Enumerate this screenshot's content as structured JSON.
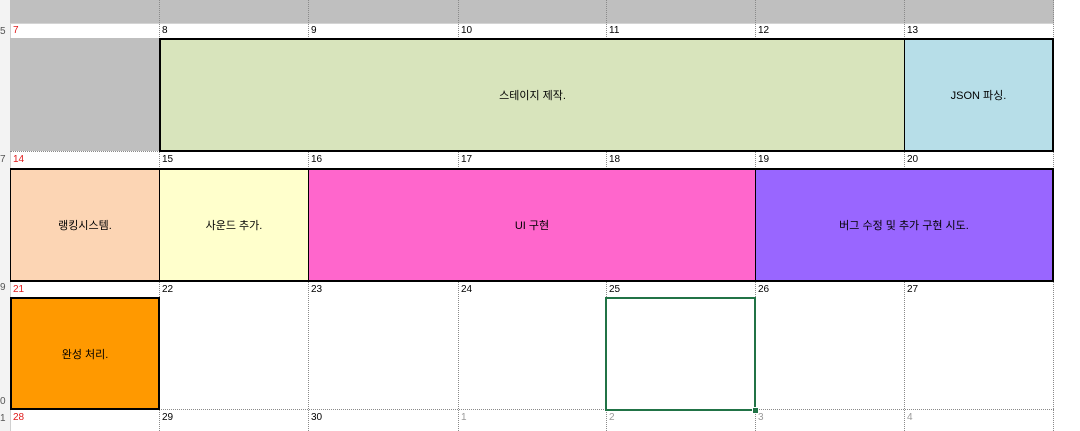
{
  "row_numbers": [
    "5",
    "7",
    "9",
    "0",
    "1"
  ],
  "week1": {
    "days": [
      "7",
      "8",
      "9",
      "10",
      "11",
      "12",
      "13"
    ],
    "events": [
      {
        "label": "스테이지 제작.",
        "color": "#d8e4bc"
      },
      {
        "label": "JSON 파싱.",
        "color": "#b7dee8"
      }
    ]
  },
  "week2": {
    "days": [
      "14",
      "15",
      "16",
      "17",
      "18",
      "19",
      "20"
    ],
    "events": [
      {
        "label": "랭킹시스템.",
        "color": "#fcd5b4"
      },
      {
        "label": "사운드 추가.",
        "color": "#ffffcc"
      },
      {
        "label": "UI 구현",
        "color": "#ff66cc"
      },
      {
        "label": "버그 수정 및 추가 구현 시도.",
        "color": "#9966ff"
      }
    ]
  },
  "week3": {
    "days": [
      "21",
      "22",
      "23",
      "24",
      "25",
      "26",
      "27"
    ],
    "events": [
      {
        "label": "완성 처리.",
        "color": "#ff9900"
      }
    ]
  },
  "week4": {
    "days": [
      "28",
      "29",
      "30",
      "1",
      "2",
      "3",
      "4"
    ]
  },
  "colors": {
    "header_gray": "#bfbfbf",
    "sunday_red": "#e01b1b",
    "selection_green": "#217346"
  }
}
